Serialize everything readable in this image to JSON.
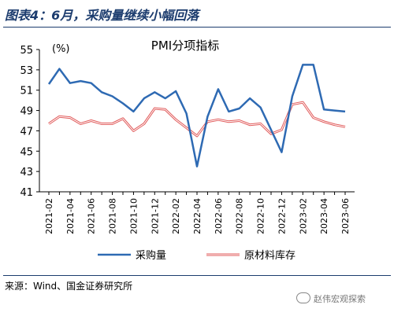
{
  "figure": {
    "title": "图表4：6月，采购量继续小幅回落",
    "source": "来源：Wind、国金证券研究所",
    "watermark": "赵伟宏观探索"
  },
  "chart_data": {
    "type": "line",
    "title": "PMI分项指标",
    "ylabel": "(%)",
    "ylim": [
      41,
      55
    ],
    "yticks": [
      41,
      43,
      45,
      47,
      49,
      51,
      53,
      55
    ],
    "x": [
      "2021-02",
      "2021-03",
      "2021-04",
      "2021-05",
      "2021-06",
      "2021-07",
      "2021-08",
      "2021-09",
      "2021-10",
      "2021-11",
      "2021-12",
      "2022-01",
      "2022-02",
      "2022-03",
      "2022-04",
      "2022-05",
      "2022-06",
      "2022-07",
      "2022-08",
      "2022-09",
      "2022-10",
      "2022-11",
      "2022-12",
      "2023-01",
      "2023-02",
      "2023-03",
      "2023-04",
      "2023-05",
      "2023-06"
    ],
    "xticklabels": [
      "2021-02",
      "2021-04",
      "2021-06",
      "2021-08",
      "2021-10",
      "2021-12",
      "2022-02",
      "2022-04",
      "2022-06",
      "2022-08",
      "2022-10",
      "2022-12",
      "2023-02",
      "2023-04",
      "2023-06"
    ],
    "grid": false,
    "legend_position": "bottom",
    "series": [
      {
        "name": "采购量",
        "color": "#2e6ab3",
        "values": [
          51.6,
          53.1,
          51.7,
          51.9,
          51.7,
          50.8,
          50.4,
          49.7,
          48.9,
          50.2,
          50.8,
          50.2,
          50.9,
          48.7,
          43.5,
          48.4,
          51.1,
          48.9,
          49.2,
          50.2,
          49.3,
          47.1,
          44.9,
          50.4,
          53.5,
          53.5,
          49.1,
          49.0,
          48.9
        ]
      },
      {
        "name": "原材料库存",
        "color": "#e15b5b",
        "values": [
          47.7,
          48.4,
          48.3,
          47.7,
          48.0,
          47.7,
          47.7,
          48.2,
          47.0,
          47.7,
          49.2,
          49.1,
          48.1,
          47.3,
          46.5,
          47.9,
          48.1,
          47.9,
          48.0,
          47.6,
          47.7,
          46.7,
          47.1,
          49.6,
          49.8,
          48.3,
          47.9,
          47.6,
          47.4
        ]
      }
    ]
  }
}
